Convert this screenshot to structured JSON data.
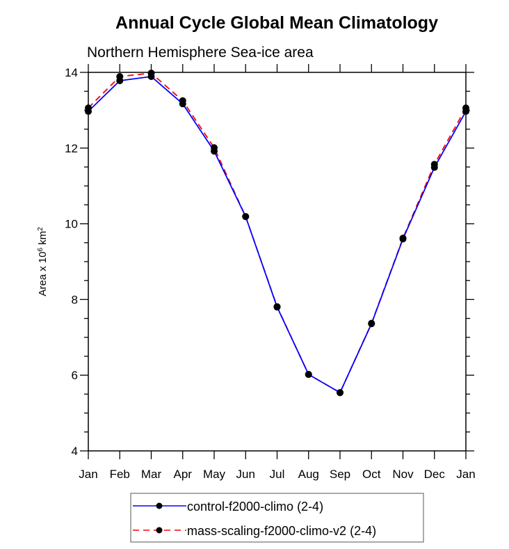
{
  "chart_data": {
    "type": "line",
    "title": "Annual Cycle Global Mean Climatology",
    "subtitle": "Northern Hemisphere Sea-ice area",
    "xlabel": "",
    "ylabel": {
      "prefix": "Area x 10",
      "sup1": "6",
      "mid": " km",
      "sup2": "2"
    },
    "categories": [
      "Jan",
      "Feb",
      "Mar",
      "Apr",
      "May",
      "Jun",
      "Jul",
      "Aug",
      "Sep",
      "Oct",
      "Nov",
      "Dec",
      "Jan"
    ],
    "ylim": [
      4,
      14
    ],
    "yticks": [
      4,
      6,
      8,
      10,
      12,
      14
    ],
    "y_minor_step": 0.5,
    "grid": false,
    "legend_position": "bottom-center",
    "series": [
      {
        "name": "control-f2000-climo (2-4)",
        "color": "#0000ff",
        "dash": "solid",
        "marker": "filled-circle",
        "values": [
          12.97,
          13.78,
          13.89,
          13.17,
          11.92,
          10.19,
          7.8,
          6.02,
          5.54,
          7.36,
          9.6,
          11.49,
          12.97
        ]
      },
      {
        "name": "mass-scaling-f2000-climo-v2 (2-4)",
        "color": "#ff0000",
        "dash": "dashed",
        "marker": "filled-circle",
        "values": [
          13.06,
          13.89,
          13.98,
          13.25,
          12.01,
          10.19,
          7.81,
          6.02,
          5.54,
          7.37,
          9.62,
          11.57,
          13.06
        ]
      }
    ]
  }
}
